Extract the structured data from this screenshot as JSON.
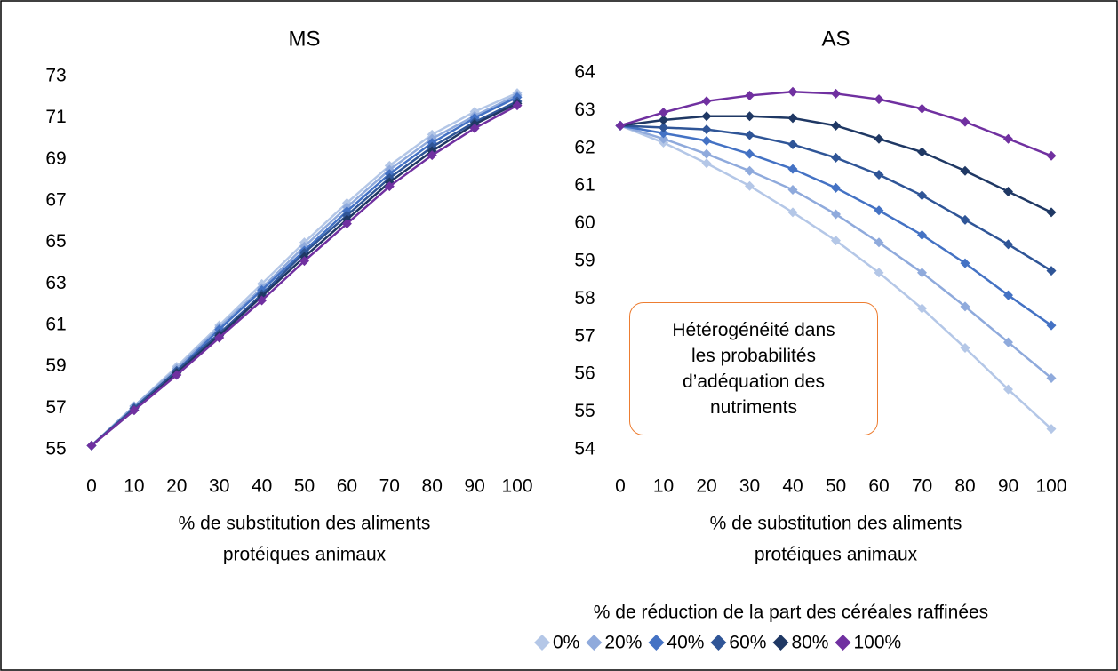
{
  "chart_data": [
    {
      "type": "line",
      "title": "MS",
      "x": [
        0,
        10,
        20,
        30,
        40,
        50,
        60,
        70,
        80,
        90,
        100
      ],
      "xlim": [
        0,
        100
      ],
      "xticks": [
        0,
        10,
        20,
        30,
        40,
        50,
        60,
        70,
        80,
        90,
        100
      ],
      "ylim": [
        55,
        73
      ],
      "yticks": [
        55,
        57,
        59,
        61,
        63,
        65,
        67,
        69,
        71,
        73
      ],
      "xlabel": [
        "% de substitution des aliments",
        "protéiques animaux"
      ],
      "series": [
        {
          "name": "0%",
          "color": "#b4c7e7",
          "values": [
            55.2,
            57.1,
            59.0,
            61.0,
            63.0,
            65.0,
            66.9,
            68.7,
            70.2,
            71.3,
            72.2
          ]
        },
        {
          "name": "20%",
          "color": "#8faadc",
          "values": [
            55.2,
            57.1,
            58.9,
            60.9,
            62.8,
            64.8,
            66.7,
            68.5,
            70.0,
            71.1,
            72.1
          ]
        },
        {
          "name": "40%",
          "color": "#4472c4",
          "values": [
            55.2,
            57.0,
            58.8,
            60.8,
            62.7,
            64.6,
            66.5,
            68.3,
            69.8,
            71.0,
            72.0
          ]
        },
        {
          "name": "60%",
          "color": "#2f5597",
          "values": [
            55.2,
            57.0,
            58.8,
            60.6,
            62.5,
            64.5,
            66.3,
            68.1,
            69.6,
            70.8,
            71.8
          ]
        },
        {
          "name": "80%",
          "color": "#1f3864",
          "values": [
            55.2,
            56.9,
            58.7,
            60.5,
            62.4,
            64.3,
            66.1,
            67.9,
            69.4,
            70.7,
            71.7
          ]
        },
        {
          "name": "100%",
          "color": "#7030a0",
          "values": [
            55.2,
            56.9,
            58.6,
            60.4,
            62.2,
            64.1,
            65.9,
            67.7,
            69.2,
            70.5,
            71.6
          ]
        }
      ]
    },
    {
      "type": "line",
      "title": "AS",
      "x": [
        0,
        10,
        20,
        30,
        40,
        50,
        60,
        70,
        80,
        90,
        100
      ],
      "xlim": [
        0,
        100
      ],
      "xticks": [
        0,
        10,
        20,
        30,
        40,
        50,
        60,
        70,
        80,
        90,
        100
      ],
      "ylim": [
        54,
        64
      ],
      "yticks": [
        54,
        55,
        56,
        57,
        58,
        59,
        60,
        61,
        62,
        63,
        64
      ],
      "xlabel": [
        "% de substitution des aliments",
        "protéiques animaux"
      ],
      "annotation": [
        "Hétérogénéité dans",
        "les probabilités",
        "d’adéquation des",
        "nutriments"
      ],
      "series": [
        {
          "color": "#b4c7e7",
          "values": [
            62.6,
            62.15,
            61.6,
            61.0,
            60.3,
            59.55,
            58.7,
            57.75,
            56.7,
            55.6,
            54.55
          ]
        },
        {
          "color": "#8faadc",
          "values": [
            62.6,
            62.25,
            61.85,
            61.4,
            60.9,
            60.25,
            59.5,
            58.7,
            57.8,
            56.85,
            55.9
          ]
        },
        {
          "color": "#4472c4",
          "values": [
            62.6,
            62.4,
            62.2,
            61.85,
            61.45,
            60.95,
            60.35,
            59.7,
            58.95,
            58.1,
            57.3
          ]
        },
        {
          "color": "#2f5597",
          "values": [
            62.6,
            62.55,
            62.5,
            62.35,
            62.1,
            61.75,
            61.3,
            60.75,
            60.1,
            59.45,
            58.75
          ]
        },
        {
          "color": "#1f3864",
          "values": [
            62.6,
            62.75,
            62.85,
            62.85,
            62.8,
            62.6,
            62.25,
            61.9,
            61.4,
            60.85,
            60.3
          ]
        },
        {
          "color": "#7030a0",
          "values": [
            62.6,
            62.95,
            63.25,
            63.4,
            63.5,
            63.45,
            63.3,
            63.05,
            62.7,
            62.25,
            61.8
          ]
        }
      ]
    }
  ],
  "legend_title": "% de réduction de la part des céréales raffinées"
}
